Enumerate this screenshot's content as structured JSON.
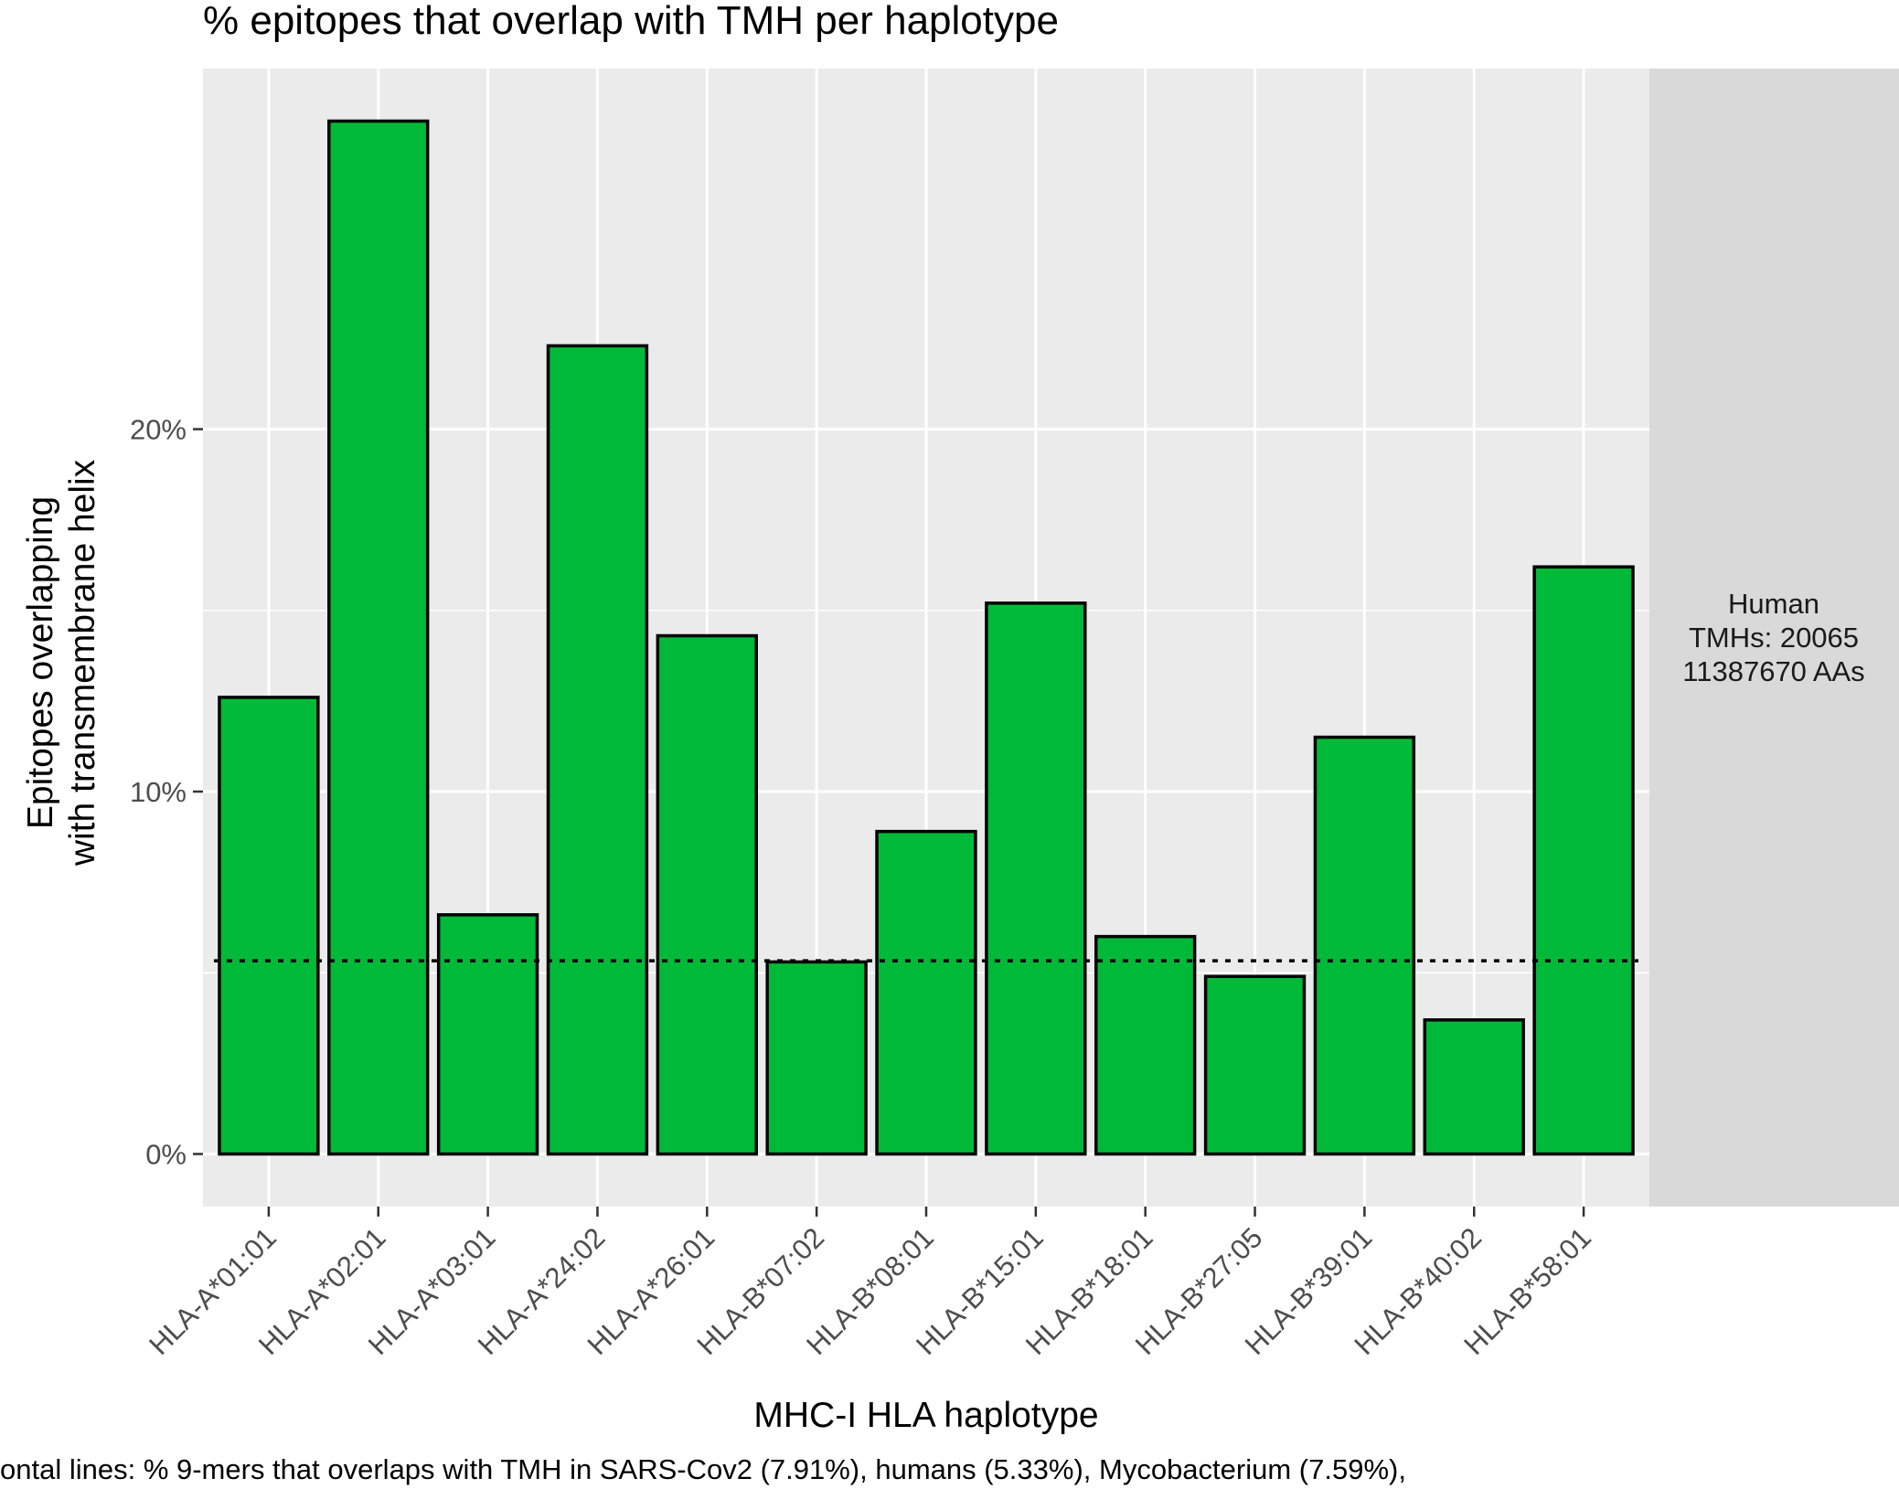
{
  "chart_data": {
    "type": "bar",
    "title": "% epitopes that overlap with TMH per haplotype",
    "xlabel": "MHC-I HLA haplotype",
    "ylabel_lines": [
      "Epitopes overlapping",
      "with transmembrane helix"
    ],
    "categories": [
      "HLA-A*01:01",
      "HLA-A*02:01",
      "HLA-A*03:01",
      "HLA-A*24:02",
      "HLA-A*26:01",
      "HLA-B*07:02",
      "HLA-B*08:01",
      "HLA-B*15:01",
      "HLA-B*18:01",
      "HLA-B*27:05",
      "HLA-B*39:01",
      "HLA-B*40:02",
      "HLA-B*58:01"
    ],
    "values": [
      12.6,
      28.5,
      6.6,
      22.3,
      14.3,
      5.3,
      8.9,
      15.2,
      6.0,
      4.9,
      11.5,
      3.7,
      16.2
    ],
    "ylim": [
      -1.45,
      29.95
    ],
    "yticks": [
      0,
      10,
      20
    ],
    "ytick_labels": [
      "0%",
      "10%",
      "20%"
    ],
    "reference_line": {
      "value": 5.33,
      "style": "dotted"
    },
    "facet_strip": {
      "lines": [
        "Human",
        "TMHs: 20065",
        "11387670 AAs"
      ]
    },
    "caption": "ontal lines: % 9-mers that overlaps with TMH in SARS-Cov2 (7.91%), humans (5.33%), Mycobacterium (7.59%),",
    "grid": true,
    "colors": {
      "bar_fill": "#00b938",
      "bar_stroke": "#000000",
      "panel_bg": "#ebebeb",
      "strip_bg": "#d9d9d9",
      "grid": "#ffffff"
    }
  }
}
